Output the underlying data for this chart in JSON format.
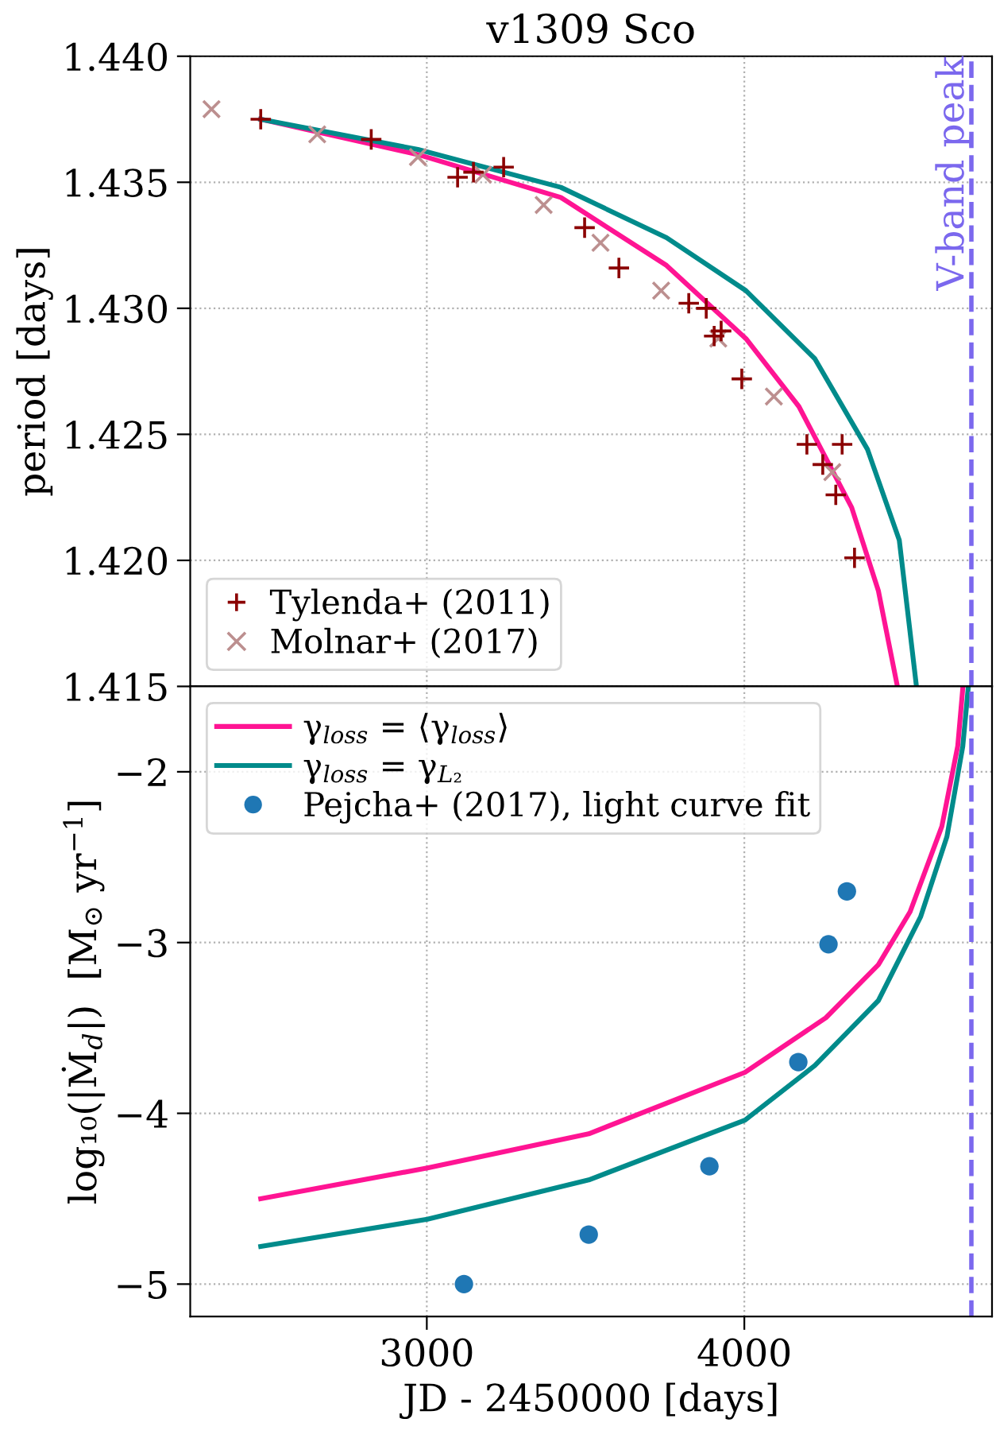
{
  "chart_data": [
    {
      "type": "scatter",
      "title": "v1309 Sco",
      "ylabel": "period [days]",
      "xlim": [
        2255,
        4780
      ],
      "xticks": [
        3000,
        4000
      ],
      "ylim": [
        1.415,
        1.44
      ],
      "yticks": [
        {
          "value": 1.415,
          "label": "1.415"
        },
        {
          "value": 1.42,
          "label": "1.420"
        },
        {
          "value": 1.425,
          "label": "1.425"
        },
        {
          "value": 1.43,
          "label": "1.430"
        },
        {
          "value": 1.435,
          "label": "1.435"
        },
        {
          "value": 1.44,
          "label": "1.440"
        }
      ],
      "tick_labels": "y",
      "grid": true,
      "legend": "bottom left",
      "ref_lines": [
        {
          "axis": "x",
          "value": 4715,
          "label": "V-band peak",
          "color": "#7b68ee",
          "line_style": "dashed"
        }
      ],
      "series": [
        {
          "type": "line",
          "color": "#ff1493",
          "x": [
            2477,
            2972,
            3422,
            3755,
            4005,
            4172,
            4338,
            4422,
            4482
          ],
          "values": [
            1.4375,
            1.4361,
            1.4344,
            1.4317,
            1.4288,
            1.4261,
            1.4221,
            1.4188,
            1.415
          ]
        },
        {
          "type": "line",
          "color": "#008b8b",
          "x": [
            2477,
            2972,
            3422,
            3755,
            4005,
            4222,
            4388,
            4488,
            4542
          ],
          "values": [
            1.4375,
            1.4363,
            1.4348,
            1.4328,
            1.4307,
            1.428,
            1.4244,
            1.4208,
            1.415
          ]
        },
        {
          "type": "scatter",
          "name": "Tylenda+ (2011)",
          "color": "#8b0000",
          "marker": "cross",
          "x": [
            2477,
            2825,
            3097,
            3147,
            3242,
            3497,
            3605,
            3825,
            3880,
            3905,
            3927,
            3992,
            4197,
            4308,
            4247,
            4288,
            4347
          ],
          "values": [
            1.4375,
            1.4367,
            1.4352,
            1.4354,
            1.4356,
            1.4332,
            1.4316,
            1.4302,
            1.43,
            1.4289,
            1.4291,
            1.4272,
            1.4246,
            1.4246,
            1.4238,
            1.4226,
            1.4201
          ]
        },
        {
          "type": "scatter",
          "name": "Molnar+ (2017)",
          "color": "#bc8f8f",
          "marker": "x",
          "x": [
            2322,
            2655,
            2972,
            3177,
            3368,
            3547,
            3738,
            3918,
            4093,
            4277
          ],
          "values": [
            1.4379,
            1.4369,
            1.436,
            1.4353,
            1.4341,
            1.4326,
            1.4307,
            1.4288,
            1.4265,
            1.4235
          ]
        }
      ]
    },
    {
      "type": "line",
      "xlabel": "JD - 2450000 [days]",
      "ylabel": "log₁₀(|Ṁ$_{d}$|)  [M$_{⊙}$ yr$^{−1}$]",
      "xlim": [
        2255,
        4780
      ],
      "xticks": [
        3000,
        4000
      ],
      "ylim": [
        -5.19,
        -1.5
      ],
      "yticks": [
        {
          "value": -5,
          "label": "−5"
        },
        {
          "value": -4,
          "label": "−4"
        },
        {
          "value": -3,
          "label": "−3"
        },
        {
          "value": -2,
          "label": "−2"
        }
      ],
      "grid": true,
      "legend": "top left",
      "ref_lines": [
        {
          "axis": "x",
          "value": 4715,
          "color": "#7b68ee",
          "line_style": "dashed"
        }
      ],
      "series": [
        {
          "type": "line",
          "name": "γ$_{loss}$ = ⟨γ$_{loss}$⟩",
          "color": "#ff1493",
          "x": [
            2477,
            3002,
            3510,
            4002,
            4257,
            4422,
            4522,
            4622,
            4672,
            4688
          ],
          "values": [
            -4.5,
            -4.32,
            -4.12,
            -3.76,
            -3.44,
            -3.13,
            -2.82,
            -2.32,
            -1.85,
            -1.51
          ]
        },
        {
          "type": "line",
          "name": "γ$_{loss}$ = γ$_{L₂}$",
          "color": "#008b8b",
          "x": [
            2477,
            3002,
            3510,
            4002,
            4222,
            4422,
            4555,
            4638,
            4688,
            4705
          ],
          "values": [
            -4.78,
            -4.62,
            -4.39,
            -4.04,
            -3.72,
            -3.34,
            -2.85,
            -2.38,
            -1.85,
            -1.51
          ]
        },
        {
          "type": "scatter",
          "name": "Pejcha+ (2017), light curve fit",
          "color": "#1f77b4",
          "marker": "circle",
          "x": [
            3117,
            3510,
            3890,
            4170,
            4265,
            4323
          ],
          "values": [
            -5.0,
            -4.71,
            -4.31,
            -3.7,
            -3.01,
            -2.7
          ]
        }
      ]
    }
  ]
}
